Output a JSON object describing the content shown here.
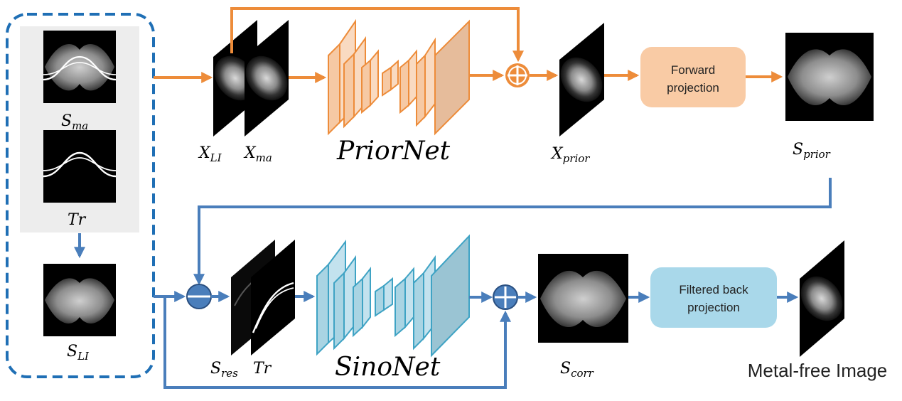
{
  "labels": {
    "s_ma": "S",
    "s_ma_sub": "ma",
    "tr_left": "Tr",
    "s_li": "S",
    "s_li_sub": "LI",
    "x_li": "X",
    "x_li_sub": "LI",
    "x_ma": "X",
    "x_ma_sub": "ma",
    "priornet": "PriorNet",
    "x_prior": "X",
    "x_prior_sub": "prior",
    "s_prior": "S",
    "s_prior_sub": "prior",
    "s_res": "S",
    "s_res_sub": "res",
    "tr_mid": "Tr",
    "sinonet": "SinoNet",
    "s_corr": "S",
    "s_corr_sub": "corr",
    "metal_free": "Metal-free Image"
  },
  "boxes": {
    "forward_line1": "Forward",
    "forward_line2": "projection",
    "fbp_line1": "Filtered back",
    "fbp_line2": "projection"
  },
  "colors": {
    "orange": "#ED8C3A",
    "orange_fill": "#F6C9A4",
    "blue": "#4A7EBB",
    "teal_fill": "#A9D4E3",
    "teal_stroke": "#3FA3C4",
    "dashed_border": "#1F6FB5",
    "gray_panel": "#EDEDED"
  }
}
